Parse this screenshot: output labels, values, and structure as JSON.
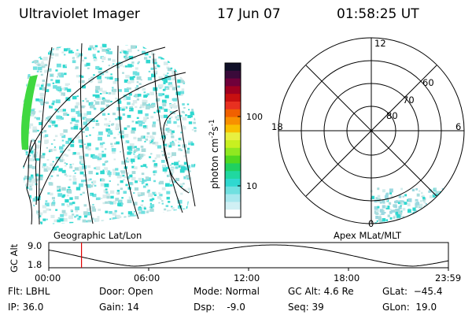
{
  "header": {
    "title": "Ultraviolet Imager",
    "date": "17 Jun 07",
    "time": "01:58:25 UT"
  },
  "colorbar": {
    "label": "photon cm⁻²s⁻¹",
    "label_base": "photon cm",
    "label_exp1": "-2",
    "label_mid": "s",
    "label_exp2": "-1",
    "ticks": [
      "100",
      "10"
    ],
    "colors_top_to_bottom": [
      "#101028",
      "#3a0a3a",
      "#70003a",
      "#a00020",
      "#c81010",
      "#e83020",
      "#f06000",
      "#f89000",
      "#f8c000",
      "#e8f040",
      "#c8f020",
      "#90e820",
      "#50d820",
      "#20d060",
      "#20d8a0",
      "#30d8d0",
      "#70e0e0",
      "#a8e8ee",
      "#d0f0f4",
      "#ffffff"
    ]
  },
  "polar_plot": {
    "labels_latitude": [
      "60",
      "70",
      "80"
    ],
    "labels_hours": {
      "top": "12",
      "left": "18",
      "right": "6",
      "bottom": "0"
    }
  },
  "captions": {
    "left": "Geographic Lat/Lon",
    "right": "Apex MLat/MLT"
  },
  "altitude_plot": {
    "ylabel": "GC Alt",
    "y_ticks": [
      "9.0",
      "1.8"
    ],
    "x_ticks": [
      "00:00",
      "06:00",
      "12:00",
      "18:00",
      "23:59"
    ],
    "marker_time": "01:58",
    "marker_color": "#e00000"
  },
  "status": {
    "filter": "Flt: LBHL",
    "ip": "IP: 36.0",
    "door": "Door: Open",
    "gain": "Gain: 14",
    "mode": "Mode: Normal",
    "dsp": "Dsp:    -9.0",
    "gc_alt": "GC Alt: 4.6 Re",
    "seq": "Seq: 39",
    "glat": "GLat:  −45.4",
    "glon": "GLon:  19.0"
  },
  "colors": {
    "aurora_light": "#a8dcdc",
    "aurora_mid": "#30d8d0",
    "aurora_green": "#40d840",
    "marker": "#e00000"
  }
}
